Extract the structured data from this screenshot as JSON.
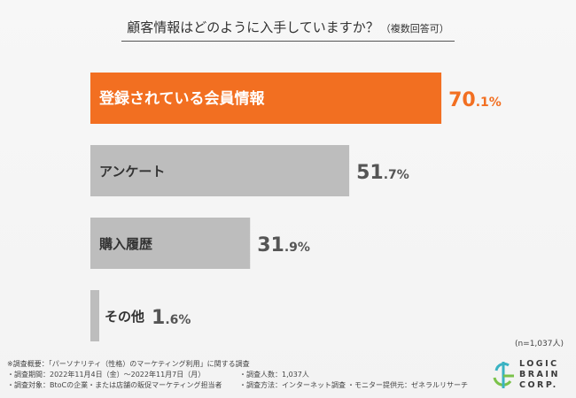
{
  "title": "顧客情報はどのように入手していますか？",
  "title_note": "（複数回答可）",
  "sample_size": "(n=1,037人)",
  "colors": {
    "highlight": "#f26f21",
    "bar": "#bdbdbd",
    "label_dark": "#333333",
    "label_light": "#ffffff"
  },
  "chart_data": {
    "type": "bar",
    "orientation": "horizontal",
    "categories": [
      "登録されている会員情報",
      "アンケート",
      "購入履歴",
      "その他"
    ],
    "values": [
      70.1,
      51.7,
      31.9,
      1.6
    ],
    "value_labels": [
      "70.1%",
      "51.7%",
      "31.9%",
      "1.6%"
    ],
    "highlight_index": 0,
    "xlim": [
      0,
      100
    ],
    "grid": false
  },
  "footer": {
    "overview": "※調査概要：「パーソナリティ（性格）のマーケティング利用」に関する調査",
    "period": "・調査期間：2022年11月4日（金）〜2022年11月7日（月）",
    "respondents": "・調査人数：1,037人",
    "target": "・調査対象：BtoCの企業・または店舗の販促マーケティング担当者",
    "method": "・調査方法：インターネット調査",
    "provider": "・モニター提供元：ゼネラルリサーチ"
  },
  "logo": {
    "line1": "LOGIC",
    "line2": "BRAIN",
    "line3": "CORP."
  }
}
